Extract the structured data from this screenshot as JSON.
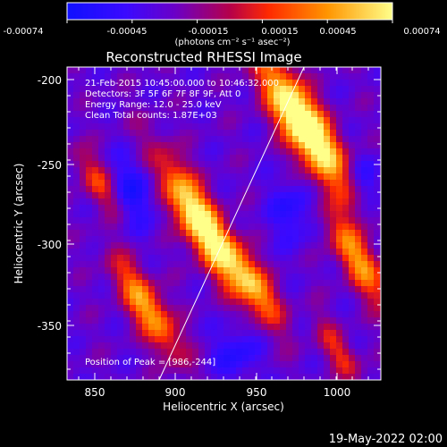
{
  "colorbar": {
    "tick_labels": [
      "-0.00074",
      "-0.00045",
      "-0.00015",
      "0.00015",
      "0.00045",
      "0.00074"
    ],
    "units_label": "(photons cm⁻² s⁻¹ asec⁻²)",
    "range": [
      -0.00074,
      0.00074
    ],
    "colormap": [
      "#1010ff",
      "#6a00c8",
      "#b5004a",
      "#ff2a00",
      "#ff9500",
      "#ffff8a"
    ]
  },
  "title": "Reconstructed RHESSI Image",
  "info": {
    "line1": "21-Feb-2015 10:45:00.000 to 10:46:32.000",
    "line2": "Detectors: 3F 5F 6F 7F 8F 9F, Att 0",
    "line3": "Energy Range: 12.0 - 25.0 keV",
    "line4": "Clean    Total counts: 1.87E+03",
    "peak": "Position of Peak = [986,-244]"
  },
  "axes": {
    "xlabel": "Heliocentric X (arcsec)",
    "ylabel": "Heliocentric Y (arcsec)",
    "x_ticks": [
      "850",
      "900",
      "950",
      "1000"
    ],
    "y_ticks": [
      "-200",
      "-250",
      "-300",
      "-350"
    ],
    "xlim": [
      833,
      1025
    ],
    "ylim": [
      -384,
      -190
    ]
  },
  "footer": {
    "date": "19-May-2022 02:00"
  }
}
